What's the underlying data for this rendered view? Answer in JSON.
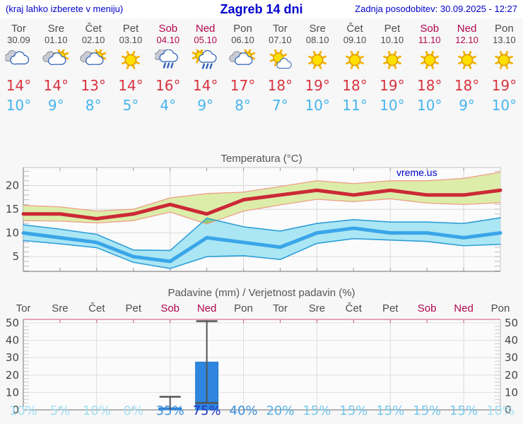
{
  "header": {
    "note": "(kraj lahko izberete v meniju)",
    "title": "Zagreb 14 dni",
    "updated": "Zadnja posodobitev: 30.09.2025 - 12:27"
  },
  "watermark": "vreme.us",
  "colors": {
    "link_blue": "#0000cc",
    "weekday_gray": "#4d4d4d",
    "weekend_red": "#b1074f",
    "temp_high": "#d93340",
    "temp_low": "#45b5ee",
    "max_line": "#cc2936",
    "max_band": "#dcedaa",
    "max_band_edge": "#ef9f87",
    "min_line": "#3aa5e8",
    "min_band": "#abe6f4",
    "min_band_edge": "#2e9fd9",
    "band_overlap": "#86cf7d",
    "precip_bar": "#2e86de",
    "whisker_gray": "#555555"
  },
  "days": [
    {
      "name": "Tor",
      "date": "30.09",
      "weekend": false,
      "icon": "cloudy",
      "high": "14°",
      "low": "10°",
      "prob": "10%"
    },
    {
      "name": "Sre",
      "date": "01.10",
      "weekend": false,
      "icon": "partly-cloudy",
      "high": "14°",
      "low": "9°",
      "prob": "5%"
    },
    {
      "name": "Čet",
      "date": "02.10",
      "weekend": false,
      "icon": "partly-cloudy",
      "high": "13°",
      "low": "8°",
      "prob": "10%"
    },
    {
      "name": "Pet",
      "date": "03.10",
      "weekend": false,
      "icon": "sunny",
      "high": "14°",
      "low": "5°",
      "prob": "0%"
    },
    {
      "name": "Sob",
      "date": "04.10",
      "weekend": true,
      "icon": "rain",
      "high": "16°",
      "low": "4°",
      "prob": "35%"
    },
    {
      "name": "Ned",
      "date": "05.10",
      "weekend": true,
      "icon": "sun-rain",
      "high": "14°",
      "low": "9°",
      "prob": "75%"
    },
    {
      "name": "Pon",
      "date": "06.10",
      "weekend": false,
      "icon": "partly-cloudy",
      "high": "17°",
      "low": "8°",
      "prob": "40%"
    },
    {
      "name": "Tor",
      "date": "07.10",
      "weekend": false,
      "icon": "mostly-sunny",
      "high": "18°",
      "low": "7°",
      "prob": "20%"
    },
    {
      "name": "Sre",
      "date": "08.10",
      "weekend": false,
      "icon": "sunny",
      "high": "19°",
      "low": "10°",
      "prob": "15%"
    },
    {
      "name": "Čet",
      "date": "09.10",
      "weekend": false,
      "icon": "sunny",
      "high": "18°",
      "low": "11°",
      "prob": "15%"
    },
    {
      "name": "Pet",
      "date": "10.10",
      "weekend": false,
      "icon": "sunny",
      "high": "19°",
      "low": "10°",
      "prob": "15%"
    },
    {
      "name": "Sob",
      "date": "11.10",
      "weekend": true,
      "icon": "sunny",
      "high": "18°",
      "low": "10°",
      "prob": "15%"
    },
    {
      "name": "Ned",
      "date": "12.10",
      "weekend": true,
      "icon": "sunny",
      "high": "18°",
      "low": "9°",
      "prob": "15%"
    },
    {
      "name": "Pon",
      "date": "13.10",
      "weekend": false,
      "icon": "sunny",
      "high": "19°",
      "low": "10°",
      "prob": "10%"
    }
  ],
  "chart_data": [
    {
      "type": "line",
      "title": "Temperatura (°C)",
      "categories": [
        "Tor 30.09",
        "Sre 01.10",
        "Čet 02.10",
        "Pet 03.10",
        "Sob 04.10",
        "Ned 05.10",
        "Pon 06.10",
        "Tor 07.10",
        "Sre 08.10",
        "Čet 09.10",
        "Pet 10.10",
        "Sob 11.10",
        "Ned 12.10",
        "Pon 13.10"
      ],
      "ylim": [
        1.9,
        23.8
      ],
      "yticks": [
        5,
        10,
        15,
        20
      ],
      "grid": true,
      "series": [
        {
          "name": "max temperature",
          "color": "#cc2936",
          "values": [
            14,
            14,
            13,
            14,
            16,
            14,
            17,
            18,
            19,
            18,
            19,
            18,
            18,
            19
          ]
        },
        {
          "name": "max range upper",
          "values": [
            15.8,
            15.5,
            14.6,
            15,
            17.4,
            18.3,
            18.6,
            19.8,
            21,
            20.4,
            21,
            21,
            21.5,
            22.8
          ]
        },
        {
          "name": "max range lower",
          "values": [
            12.6,
            12.5,
            12.1,
            12.6,
            14.4,
            11.9,
            14.6,
            15.9,
            17.1,
            16.6,
            17.2,
            16.3,
            16,
            16.4
          ]
        },
        {
          "name": "min temperature",
          "color": "#3aa5e8",
          "values": [
            10,
            9,
            8,
            5,
            4,
            9,
            8,
            7,
            10,
            11,
            10,
            10,
            9,
            10
          ]
        },
        {
          "name": "min range upper",
          "values": [
            11.7,
            10.8,
            9.7,
            6.4,
            6.3,
            13.1,
            11.3,
            10.4,
            12,
            12.8,
            12.3,
            12.3,
            12,
            13.2
          ]
        },
        {
          "name": "min range lower",
          "values": [
            8.4,
            7.7,
            6.9,
            3.8,
            2.5,
            5,
            5.2,
            4.4,
            7.8,
            8.8,
            8.5,
            8.2,
            7.3,
            7.6
          ]
        }
      ]
    },
    {
      "type": "bar",
      "title": "Padavine (mm) / Verjetnost padavin (%)",
      "categories": [
        "Tor",
        "Sre",
        "Čet",
        "Pet",
        "Sob",
        "Ned",
        "Pon",
        "Tor",
        "Sre",
        "Čet",
        "Pet",
        "Sob",
        "Ned",
        "Pon"
      ],
      "values": [
        0,
        0,
        0,
        0,
        1.2,
        27.5,
        0,
        0,
        0,
        0,
        0,
        0,
        0,
        0
      ],
      "whisker_low": [
        null,
        null,
        null,
        null,
        0,
        4,
        null,
        null,
        null,
        null,
        null,
        null,
        null,
        null
      ],
      "whisker_high": [
        null,
        null,
        null,
        null,
        7.5,
        51,
        null,
        null,
        null,
        null,
        null,
        null,
        null,
        null
      ],
      "probabilities_percent": [
        10,
        5,
        10,
        0,
        35,
        75,
        40,
        20,
        15,
        15,
        15,
        15,
        15,
        10
      ],
      "ylim": [
        0,
        52
      ],
      "yticks": [
        0,
        10,
        20,
        30,
        40,
        50
      ],
      "grid": true
    }
  ]
}
